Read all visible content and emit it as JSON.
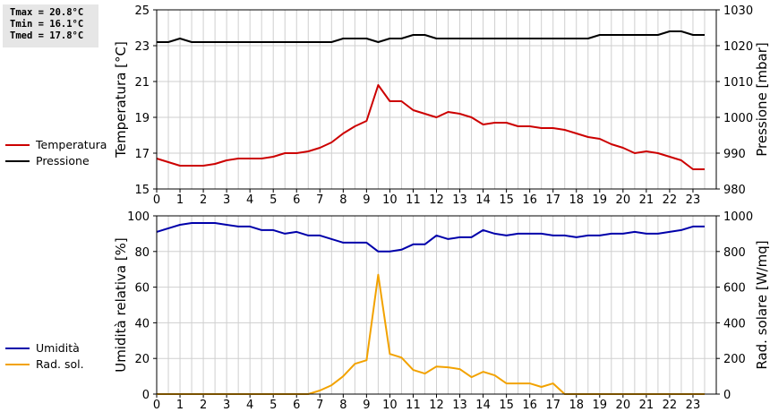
{
  "stats": {
    "tmax": "Tmax = 20.8°C",
    "tmin": "Tmin = 16.1°C",
    "tmed": "Tmed = 17.8°C"
  },
  "colors": {
    "temperature": "#cc0000",
    "pressure": "#000000",
    "humidity": "#0000aa",
    "radiation": "#f2a200",
    "grid": "#cfcfcf"
  },
  "legend_top": [
    {
      "label": "Temperatura",
      "color": "#cc0000"
    },
    {
      "label": "Pressione",
      "color": "#000000"
    }
  ],
  "legend_bottom": [
    {
      "label": "Umidità",
      "color": "#0000aa"
    },
    {
      "label": "Rad. sol.",
      "color": "#f2a200"
    }
  ],
  "chart_data": [
    {
      "type": "line",
      "xlabel": "",
      "x_ticks": [
        "0",
        "1",
        "2",
        "3",
        "4",
        "5",
        "6",
        "7",
        "8",
        "9",
        "10",
        "11",
        "12",
        "13",
        "14",
        "15",
        "16",
        "17",
        "18",
        "19",
        "20",
        "21",
        "22",
        "23"
      ],
      "xlim": [
        0,
        24
      ],
      "y_left": {
        "label": "Temperatura [°C]",
        "lim": [
          15,
          25
        ],
        "ticks": [
          "15",
          "17",
          "19",
          "21",
          "23",
          "25"
        ]
      },
      "y_right": {
        "label": "Pressione [mbar]",
        "lim": [
          980,
          1030
        ],
        "ticks": [
          "980",
          "990",
          "1000",
          "1010",
          "1020",
          "1030"
        ]
      },
      "grid": true,
      "series": [
        {
          "name": "Temperatura",
          "axis": "left",
          "color": "#cc0000",
          "x": [
            0,
            0.5,
            1,
            1.5,
            2,
            2.5,
            3,
            3.5,
            4,
            4.5,
            5,
            5.5,
            6,
            6.5,
            7,
            7.5,
            8,
            8.5,
            9,
            9.5,
            10,
            10.5,
            11,
            11.5,
            12,
            12.5,
            13,
            13.5,
            14,
            14.5,
            15,
            15.5,
            16,
            16.5,
            17,
            17.5,
            18,
            18.5,
            19,
            19.5,
            20,
            20.5,
            21,
            21.5,
            22,
            22.5,
            23,
            23.5
          ],
          "values": [
            16.7,
            16.5,
            16.3,
            16.3,
            16.3,
            16.4,
            16.6,
            16.7,
            16.7,
            16.7,
            16.8,
            17.0,
            17.0,
            17.1,
            17.3,
            17.6,
            18.1,
            18.5,
            18.8,
            20.8,
            19.9,
            19.9,
            19.4,
            19.2,
            19.0,
            19.3,
            19.2,
            19.0,
            18.6,
            18.7,
            18.7,
            18.5,
            18.5,
            18.4,
            18.4,
            18.3,
            18.1,
            17.9,
            17.8,
            17.5,
            17.3,
            17.0,
            17.1,
            17.0,
            16.8,
            16.6,
            16.1,
            16.1
          ]
        },
        {
          "name": "Pressione",
          "axis": "right",
          "color": "#000000",
          "x": [
            0,
            0.5,
            1,
            1.5,
            2,
            2.5,
            3,
            3.5,
            4,
            4.5,
            5,
            5.5,
            6,
            6.5,
            7,
            7.5,
            8,
            8.5,
            9,
            9.5,
            10,
            10.5,
            11,
            11.5,
            12,
            12.5,
            13,
            13.5,
            14,
            14.5,
            15,
            15.5,
            16,
            16.5,
            17,
            17.5,
            18,
            18.5,
            19,
            19.5,
            20,
            20.5,
            21,
            21.5,
            22,
            22.5,
            23,
            23.5
          ],
          "values": [
            1021,
            1021,
            1022,
            1021,
            1021,
            1021,
            1021,
            1021,
            1021,
            1021,
            1021,
            1021,
            1021,
            1021,
            1021,
            1021,
            1022,
            1022,
            1022,
            1021,
            1022,
            1022,
            1023,
            1023,
            1022,
            1022,
            1022,
            1022,
            1022,
            1022,
            1022,
            1022,
            1022,
            1022,
            1022,
            1022,
            1022,
            1022,
            1023,
            1023,
            1023,
            1023,
            1023,
            1023,
            1024,
            1024,
            1023,
            1023
          ]
        }
      ]
    },
    {
      "type": "line",
      "xlabel": "",
      "x_ticks": [
        "0",
        "1",
        "2",
        "3",
        "4",
        "5",
        "6",
        "7",
        "8",
        "9",
        "10",
        "11",
        "12",
        "13",
        "14",
        "15",
        "16",
        "17",
        "18",
        "19",
        "20",
        "21",
        "22",
        "23"
      ],
      "xlim": [
        0,
        24
      ],
      "y_left": {
        "label": "Umidità relativa [%]",
        "lim": [
          0,
          100
        ],
        "ticks": [
          "0",
          "20",
          "40",
          "60",
          "80",
          "100"
        ]
      },
      "y_right": {
        "label": "Rad. solare [W/mq]",
        "lim": [
          0,
          1000
        ],
        "ticks": [
          "0",
          "200",
          "400",
          "600",
          "800",
          "1000"
        ]
      },
      "grid": true,
      "series": [
        {
          "name": "Umidità",
          "axis": "left",
          "color": "#0000aa",
          "x": [
            0,
            0.5,
            1,
            1.5,
            2,
            2.5,
            3,
            3.5,
            4,
            4.5,
            5,
            5.5,
            6,
            6.5,
            7,
            7.5,
            8,
            8.5,
            9,
            9.5,
            10,
            10.5,
            11,
            11.5,
            12,
            12.5,
            13,
            13.5,
            14,
            14.5,
            15,
            15.5,
            16,
            16.5,
            17,
            17.5,
            18,
            18.5,
            19,
            19.5,
            20,
            20.5,
            21,
            21.5,
            22,
            22.5,
            23,
            23.5
          ],
          "values": [
            91,
            93,
            95,
            96,
            96,
            96,
            95,
            94,
            94,
            92,
            92,
            90,
            91,
            89,
            89,
            87,
            85,
            85,
            85,
            80,
            80,
            81,
            84,
            84,
            89,
            87,
            88,
            88,
            92,
            90,
            89,
            90,
            90,
            90,
            89,
            89,
            88,
            89,
            89,
            90,
            90,
            91,
            90,
            90,
            91,
            92,
            94,
            94
          ]
        },
        {
          "name": "Rad. sol.",
          "axis": "right",
          "color": "#f2a200",
          "x": [
            0,
            0.5,
            1,
            1.5,
            2,
            2.5,
            3,
            3.5,
            4,
            4.5,
            5,
            5.5,
            6,
            6.5,
            7,
            7.5,
            8,
            8.5,
            9,
            9.5,
            10,
            10.5,
            11,
            11.5,
            12,
            12.5,
            13,
            13.5,
            14,
            14.5,
            15,
            15.5,
            16,
            16.5,
            17,
            17.5,
            18,
            18.5,
            19,
            19.5,
            20,
            20.5,
            21,
            21.5,
            22,
            22.5,
            23,
            23.5
          ],
          "values": [
            0,
            0,
            0,
            0,
            0,
            0,
            0,
            0,
            0,
            0,
            0,
            0,
            0,
            0,
            20,
            50,
            100,
            170,
            190,
            670,
            225,
            205,
            135,
            115,
            155,
            150,
            140,
            95,
            125,
            105,
            60,
            60,
            60,
            40,
            60,
            0,
            0,
            0,
            0,
            0,
            0,
            0,
            0,
            0,
            0,
            0,
            0,
            0
          ]
        }
      ]
    }
  ]
}
